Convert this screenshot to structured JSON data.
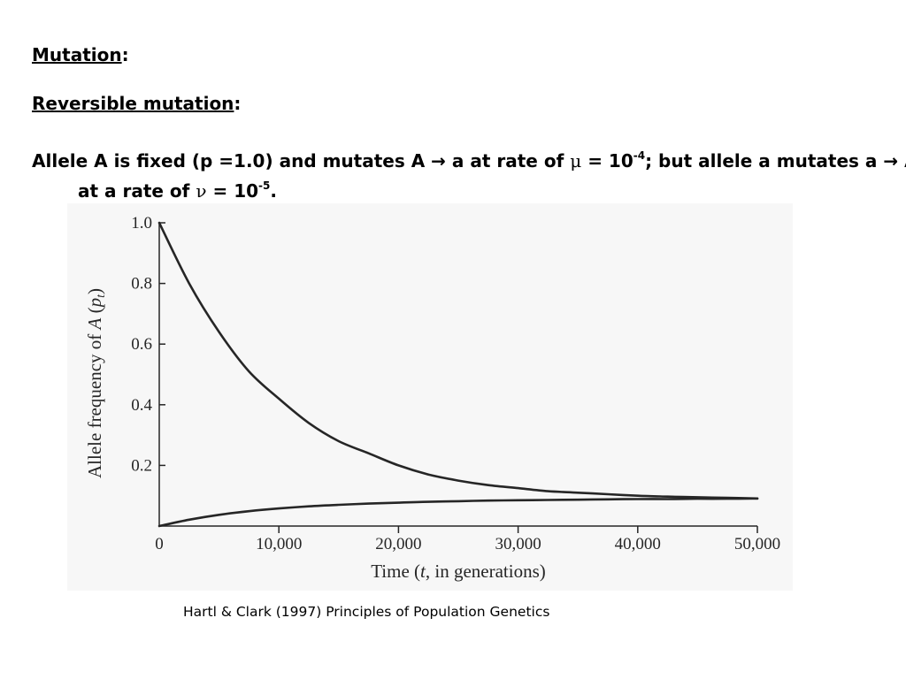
{
  "slide": {
    "heading_mutation": "Mutation",
    "heading_reversible": "Reversible mutation",
    "heading_suffix": ":",
    "statement": {
      "text_1": "Allele A is fixed (p =1.0) and mutates A ",
      "arrow": "→",
      "text_2": " a at rate of ",
      "mu": "μ",
      "text_3": " = 10",
      "mu_exp": "-4",
      "text_4": "; but allele a mutates a ",
      "text_5": " A at a rate of ",
      "nu": "ν",
      "text_6": " = 10",
      "nu_exp": "-5",
      "text_7": "."
    },
    "citation": "Hartl & Clark (1997) Principles of Population Genetics"
  },
  "chart_data": {
    "type": "line",
    "title": "",
    "xlabel_parts": [
      "Time (",
      "t",
      ", in generations)"
    ],
    "ylabel_parts": [
      "Allele frequency of ",
      "A",
      " (",
      "p",
      "t",
      ")"
    ],
    "xlim": [
      0,
      50000
    ],
    "ylim": [
      0,
      1.0
    ],
    "x_ticks": [
      0,
      10000,
      20000,
      30000,
      40000,
      50000
    ],
    "x_tick_labels": [
      "0",
      "10,000",
      "20,000",
      "30,000",
      "40,000",
      "50,000"
    ],
    "y_ticks": [
      0.2,
      0.4,
      0.6,
      0.8,
      1.0
    ],
    "y_tick_labels": [
      "0.2",
      "0.4",
      "0.6",
      "0.8",
      "1.0"
    ],
    "grid": false,
    "legend": "none",
    "line_color": "#262626",
    "series": [
      {
        "x": [
          0,
          2500,
          5000,
          7500,
          10000,
          12500,
          15000,
          17500,
          20000,
          22500,
          25000,
          27500,
          30000,
          32500,
          35000,
          37500,
          40000,
          42500,
          45000,
          47500,
          50000
        ],
        "values": [
          1.0,
          0.8,
          0.64,
          0.51,
          0.42,
          0.34,
          0.28,
          0.24,
          0.2,
          0.17,
          0.15,
          0.135,
          0.125,
          0.115,
          0.11,
          0.105,
          0.1,
          0.097,
          0.095,
          0.093,
          0.091
        ]
      },
      {
        "x": [
          0,
          2500,
          5000,
          7500,
          10000,
          12500,
          15000,
          17500,
          20000,
          22500,
          25000,
          27500,
          30000,
          32500,
          35000,
          37500,
          40000,
          42500,
          45000,
          47500,
          50000
        ],
        "values": [
          0.0,
          0.021,
          0.037,
          0.049,
          0.058,
          0.065,
          0.07,
          0.074,
          0.077,
          0.08,
          0.082,
          0.084,
          0.085,
          0.086,
          0.087,
          0.088,
          0.089,
          0.089,
          0.09,
          0.09,
          0.091
        ]
      }
    ]
  }
}
